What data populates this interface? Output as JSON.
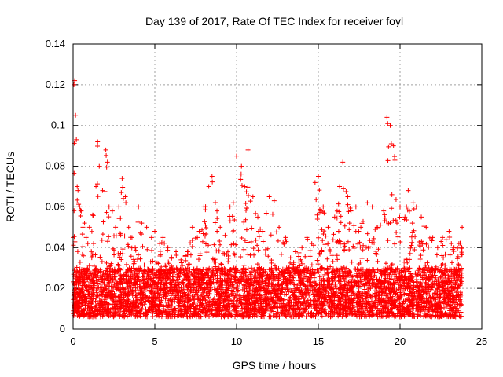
{
  "chart_data": {
    "type": "scatter",
    "title": "Day 139 of 2017, Rate Of TEC Index for receiver foyl",
    "xlabel": "GPS time / hours",
    "ylabel": "ROTI / TECUs",
    "xlim": [
      0,
      25
    ],
    "ylim": [
      0,
      0.14
    ],
    "x_ticks": [
      0,
      5,
      10,
      15,
      20,
      25
    ],
    "y_ticks": [
      0,
      0.02,
      0.04,
      0.06,
      0.08,
      0.1,
      0.12,
      0.14
    ],
    "x_tick_labels": [
      "0",
      "5",
      "10",
      "15",
      "20",
      "25"
    ],
    "y_tick_labels": [
      "0",
      "0.02",
      "0.04",
      "0.06",
      "0.08",
      "0.1",
      "0.12",
      "0.14"
    ],
    "grid": true,
    "marker": "+",
    "color": "#ff0000",
    "series": [
      {
        "name": "ROTI",
        "x": [
          0.0,
          0.05,
          0.1,
          0.15,
          0.2,
          0.25,
          0.3,
          0.4,
          0.5,
          0.6,
          0.7,
          0.8,
          0.9,
          1.0,
          1.2,
          1.4,
          1.5,
          1.6,
          1.8,
          2.0,
          2.1,
          2.2,
          2.4,
          2.6,
          2.8,
          3.0,
          3.2,
          3.4,
          3.6,
          3.8,
          4.0,
          4.2,
          4.5,
          4.8,
          5.0,
          5.3,
          5.5,
          5.8,
          6.0,
          6.3,
          6.6,
          7.0,
          7.3,
          7.6,
          8.0,
          8.3,
          8.5,
          8.8,
          9.0,
          9.3,
          9.6,
          9.8,
          10.0,
          10.3,
          10.5,
          10.7,
          11.0,
          11.3,
          11.6,
          12.0,
          12.3,
          12.6,
          13.0,
          13.3,
          13.6,
          14.0,
          14.3,
          14.6,
          14.8,
          15.0,
          15.3,
          15.6,
          16.0,
          16.3,
          16.5,
          16.8,
          17.0,
          17.3,
          17.6,
          18.0,
          18.3,
          18.6,
          19.0,
          19.2,
          19.4,
          19.6,
          20.0,
          20.3,
          20.5,
          20.8,
          21.0,
          21.3,
          21.6,
          22.0,
          22.3,
          22.6,
          23.0,
          23.3,
          23.6,
          23.8
        ],
        "y": [
          0.045,
          0.12,
          0.122,
          0.105,
          0.093,
          0.07,
          0.068,
          0.06,
          0.058,
          0.05,
          0.052,
          0.045,
          0.042,
          0.05,
          0.056,
          0.07,
          0.092,
          0.08,
          0.068,
          0.088,
          0.082,
          0.06,
          0.058,
          0.05,
          0.06,
          0.074,
          0.065,
          0.05,
          0.045,
          0.04,
          0.06,
          0.052,
          0.05,
          0.045,
          0.048,
          0.042,
          0.045,
          0.04,
          0.035,
          0.038,
          0.034,
          0.038,
          0.05,
          0.045,
          0.06,
          0.07,
          0.075,
          0.058,
          0.05,
          0.046,
          0.06,
          0.062,
          0.085,
          0.08,
          0.07,
          0.088,
          0.065,
          0.055,
          0.048,
          0.065,
          0.063,
          0.05,
          0.045,
          0.035,
          0.038,
          0.04,
          0.045,
          0.042,
          0.072,
          0.075,
          0.06,
          0.05,
          0.055,
          0.07,
          0.082,
          0.065,
          0.058,
          0.06,
          0.05,
          0.062,
          0.06,
          0.05,
          0.058,
          0.104,
          0.1,
          0.09,
          0.06,
          0.055,
          0.068,
          0.062,
          0.06,
          0.055,
          0.05,
          0.045,
          0.04,
          0.045,
          0.048,
          0.04,
          0.042,
          0.05
        ]
      }
    ],
    "baseline_band": {
      "typical_low": 0.006,
      "typical_high": 0.03
    }
  }
}
